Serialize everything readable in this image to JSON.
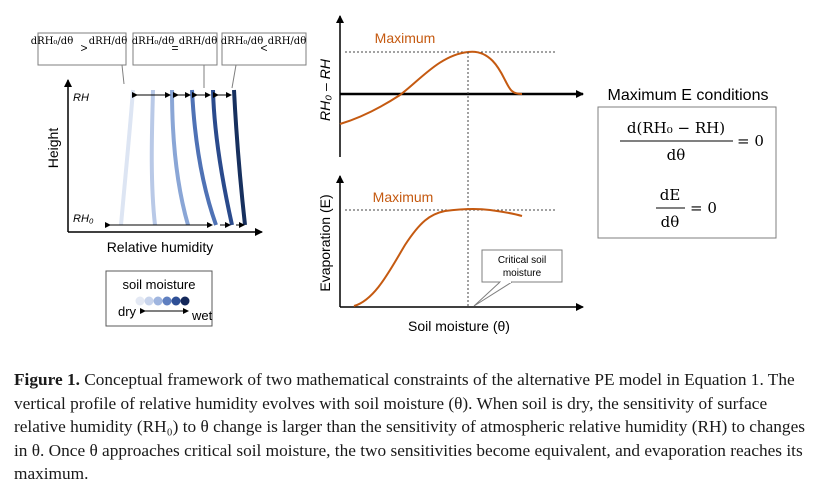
{
  "left_panel": {
    "y_axis_label": "Height",
    "x_axis_label": "Relative humidity",
    "top_level_label": "RH",
    "bottom_level_label": "RH₀",
    "callouts": [
      {
        "left": "dRH₀/dθ",
        "op": ">",
        "right": "dRH/dθ"
      },
      {
        "left": "dRH₀/dθ",
        "op": "=",
        "right": "dRH/dθ"
      },
      {
        "left": "dRH₀/dθ",
        "op": "<",
        "right": "dRH/dθ"
      }
    ],
    "profile_colors": [
      "#dde5f3",
      "#b9c9e7",
      "#8aa6d6",
      "#4f72b5",
      "#2a4a8c",
      "#17305e"
    ]
  },
  "legend": {
    "title": "soil moisture",
    "dry_label": "dry",
    "wet_label": "wet",
    "dot_colors": [
      "#e4e9f4",
      "#c8d4ec",
      "#9fb5df",
      "#5f7fc0",
      "#2e4f96",
      "#14285a"
    ]
  },
  "top_panel": {
    "y_axis_label": "RH₀ – RH",
    "max_label": "Maximum"
  },
  "bottom_panel": {
    "y_axis_label": "Evaporation (E)",
    "max_label": "Maximum",
    "x_axis_label": "Soil moisture (θ)",
    "critical_label_line1": "Critical soil",
    "critical_label_line2": "moisture"
  },
  "conditions": {
    "title": "Maximum E conditions",
    "eq1_numerator": "d(RH₀ − RH)",
    "eq1_denominator": "dθ",
    "eq1_rhs": "= 0",
    "eq2_numerator": "dE",
    "eq2_denominator": "dθ",
    "eq2_rhs": "= 0"
  },
  "colors": {
    "curve": "#c55a11",
    "axis": "#000000",
    "box_border": "#7f7f7f"
  },
  "caption": {
    "label": "Figure 1.",
    "text": " Conceptual framework of two mathematical constraints of the alternative PE model in Equation 1. The vertical profile of relative humidity evolves with soil moisture (θ). When soil is dry, the sensitivity of surface relative humidity (RH₀) to θ change is larger than the sensitivity of atmospheric relative humidity (RH) to changes in θ. Once θ approaches critical soil moisture, the two sensitivities become equivalent, and evaporation reaches its maximum."
  }
}
